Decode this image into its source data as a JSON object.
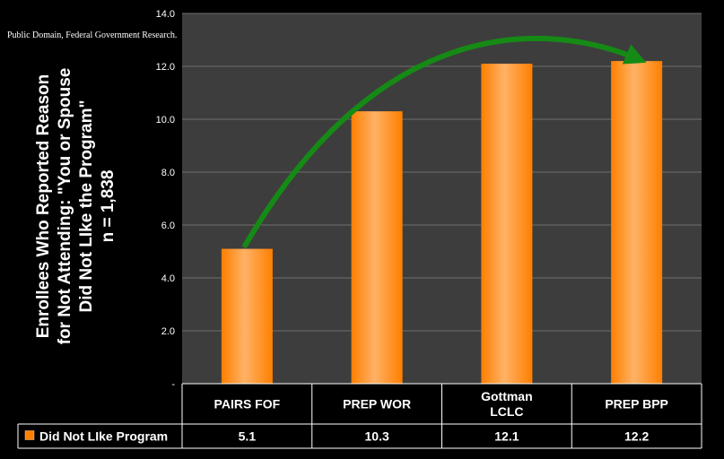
{
  "source_note": "Public Domain, Federal Government Research.",
  "colors": {
    "plot_bg": "#3d3d3d",
    "bar": "#ff7f00",
    "bar_light": "#ffb266",
    "arrow": "#158a15",
    "grid": "#6e6e6e",
    "text": "#ffffff",
    "table_border": "#ffffff"
  },
  "chart_data": {
    "type": "bar",
    "categories": [
      "PAIRS FOF",
      "PREP WOR",
      "Gottman\nLCLC",
      "PREP BPP"
    ],
    "series": [
      {
        "name": "Did Not LIke Program",
        "values": [
          5.1,
          10.3,
          12.1,
          12.2
        ]
      }
    ],
    "value_labels": [
      "5.1",
      "10.3",
      "12.1",
      "12.2"
    ],
    "ylabel_lines": [
      "Enrollees Who Reported Reason",
      "for Not Attending: \"You or Spouse",
      "Did Not LIke the Program\"",
      "n = 1,838"
    ],
    "ylim": [
      0,
      14
    ],
    "yticks": [
      {
        "value": 0,
        "label": "-"
      },
      {
        "value": 2,
        "label": "2.0"
      },
      {
        "value": 4,
        "label": "4.0"
      },
      {
        "value": 6,
        "label": "6.0"
      },
      {
        "value": 8,
        "label": "8.0"
      },
      {
        "value": 10,
        "label": "10.0"
      },
      {
        "value": 12,
        "label": "12.0"
      },
      {
        "value": 14,
        "label": "14.0"
      }
    ],
    "grid": true,
    "legend": "data-table",
    "annotation": "green arrow from first bar to last bar"
  }
}
